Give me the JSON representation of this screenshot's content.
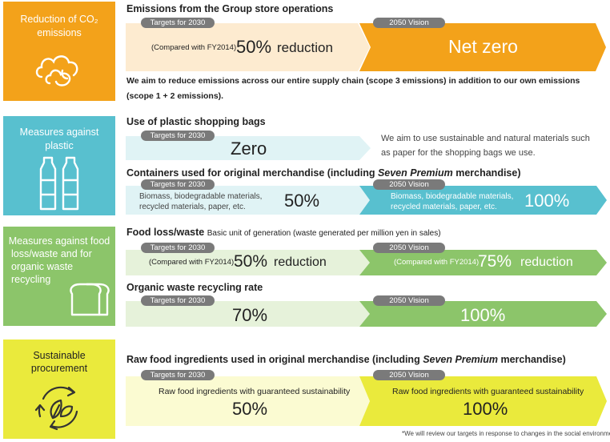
{
  "colors": {
    "co2": "#f3a21a",
    "plastic": "#58c0cf",
    "food": "#8cc56a",
    "procure": "#eaea3c",
    "pill": "#7a7a7a",
    "arrow_orange_light": "#fdebd0",
    "arrow_teal_light": "#e0f3f5",
    "arrow_green_light": "#e6f2da",
    "arrow_yellow_light": "#fbfbd2"
  },
  "co2": {
    "side_title": "Reduction of CO₂ emissions",
    "side_title_line1": "Reduction of CO₂",
    "side_title_line2": "emissions",
    "icon": "cloud-icon",
    "heading": "Emissions from the Group store operations",
    "target_pill": "Targets for 2030",
    "vision_pill": "2050 Vision",
    "target_note": "(Compared with FY2014)",
    "target_value": "50%",
    "target_suffix": "reduction",
    "vision_value": "Net zero",
    "note_line1": "We aim to reduce emissions across our entire supply chain (scope 3 emissions) in addition to our own emissions",
    "note_line2": "(scope 1 + 2 emissions)."
  },
  "plastic": {
    "side_title_line1": "Measures against",
    "side_title_line2": "plastic",
    "icon": "bottles-icon",
    "bags_heading": "Use of plastic shopping bags",
    "bags_pill": "Targets for 2030",
    "bags_value": "Zero",
    "bags_note_line1": "We aim to use sustainable and natural materials such",
    "bags_note_line2": "as paper for the shopping bags we use.",
    "containers_heading_pre": "Containers used for original merchandise (including ",
    "containers_heading_em": "Seven Premium",
    "containers_heading_post": " merchandise)",
    "containers_target_pill": "Targets for 2030",
    "containers_vision_pill": "2050 Vision",
    "containers_target_text1": "Biomass, biodegradable materials,",
    "containers_target_text2": "recycled materials, paper, etc.",
    "containers_target_value": "50%",
    "containers_vision_text1": "Biomass, biodegradable materials,",
    "containers_vision_text2": "recycled materials, paper, etc.",
    "containers_vision_value": "100%"
  },
  "food": {
    "side_title_line1": "Measures against food",
    "side_title_line2": "loss/waste and for",
    "side_title_line3": "organic waste",
    "side_title_line4": "recycling",
    "icon": "bread-icon",
    "loss_heading": "Food loss/waste",
    "loss_heading_sub": "Basic unit of generation (waste generated per million yen in sales)",
    "loss_target_pill": "Targets for 2030",
    "loss_vision_pill": "2050 Vision",
    "loss_target_note": "(Compared with FY2014)",
    "loss_target_value": "50%",
    "loss_target_suffix": "reduction",
    "loss_vision_note": "(Compared with FY2014)",
    "loss_vision_value": "75%",
    "loss_vision_suffix": "reduction",
    "recycle_heading": "Organic waste recycling rate",
    "recycle_target_pill": "Targets for 2030",
    "recycle_vision_pill": "2050 Vision",
    "recycle_target_value": "70%",
    "recycle_vision_value": "100%"
  },
  "procure": {
    "side_title_line1": "Sustainable",
    "side_title_line2": "procurement",
    "icon": "recycle-leaf-icon",
    "heading_pre": "Raw food ingredients used in original merchandise (including ",
    "heading_em": "Seven Premium",
    "heading_post": " merchandise)",
    "target_pill": "Targets for 2030",
    "vision_pill": "2050 Vision",
    "target_text": "Raw food ingredients with guaranteed sustainability",
    "target_value": "50%",
    "vision_text": "Raw food ingredients with guaranteed sustainability",
    "vision_value": "100%"
  },
  "footnote": "*We will review our targets in response to changes in the social environment."
}
